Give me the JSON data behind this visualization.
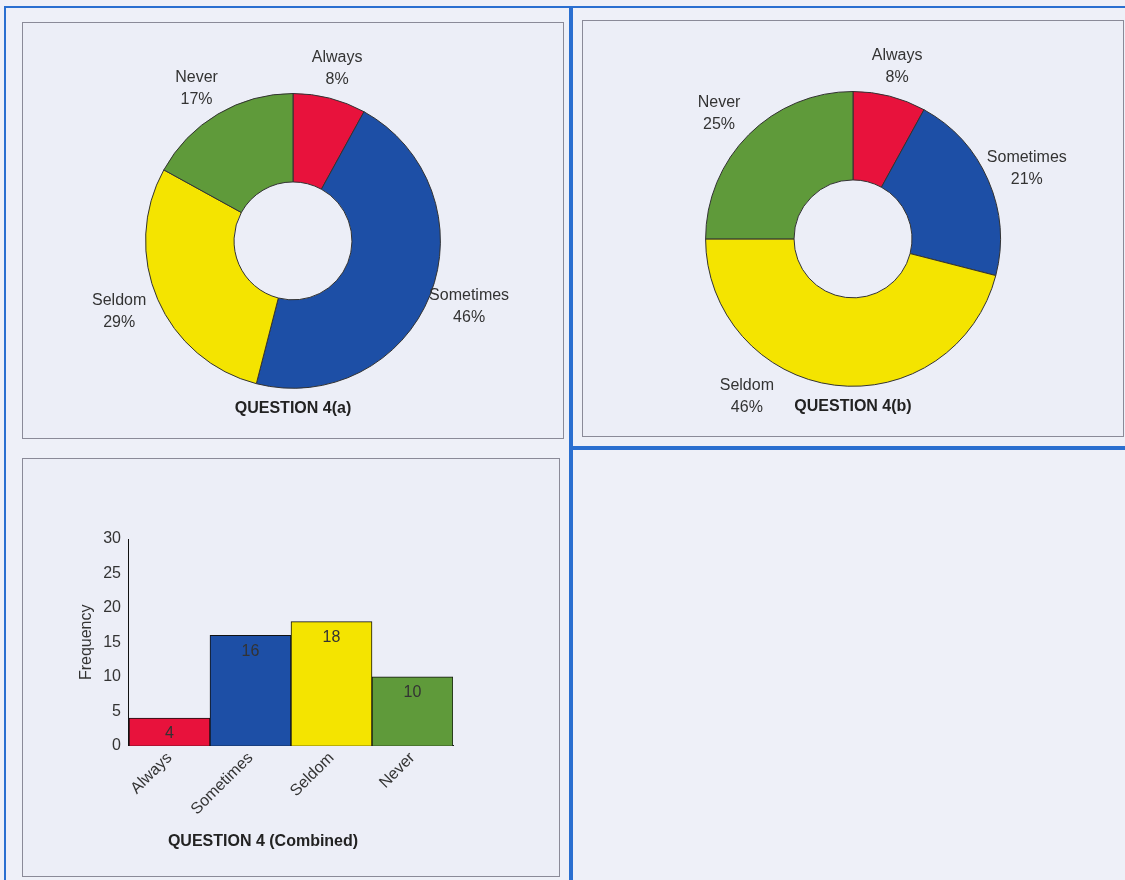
{
  "chart_data": [
    {
      "type": "donut",
      "title": "QUESTION 4(a)",
      "categories": [
        "Always",
        "Sometimes",
        "Seldom",
        "Never"
      ],
      "values": [
        8,
        46,
        29,
        17
      ],
      "value_labels": [
        "8%",
        "46%",
        "29%",
        "17%"
      ],
      "colors": [
        "#e8123c",
        "#1d4fa6",
        "#f4e400",
        "#5f9a3a"
      ]
    },
    {
      "type": "donut",
      "title": "QUESTION 4(b)",
      "categories": [
        "Always",
        "Sometimes",
        "Seldom",
        "Never"
      ],
      "values": [
        8,
        21,
        46,
        25
      ],
      "value_labels": [
        "8%",
        "21%",
        "46%",
        "25%"
      ],
      "colors": [
        "#e8123c",
        "#1d4fa6",
        "#f4e400",
        "#5f9a3a"
      ]
    },
    {
      "type": "bar",
      "title": "QUESTION 4 (Combined)",
      "ylabel": "Frequency",
      "categories": [
        "Always",
        "Sometimes",
        "Seldom",
        "Never"
      ],
      "values": [
        4,
        16,
        18,
        10
      ],
      "colors": [
        "#e8123c",
        "#1d4fa6",
        "#f4e400",
        "#5f9a3a"
      ],
      "ylim": [
        0,
        30
      ],
      "yticks": [
        0,
        5,
        10,
        15,
        20,
        25,
        30
      ],
      "data_labels": true
    }
  ]
}
